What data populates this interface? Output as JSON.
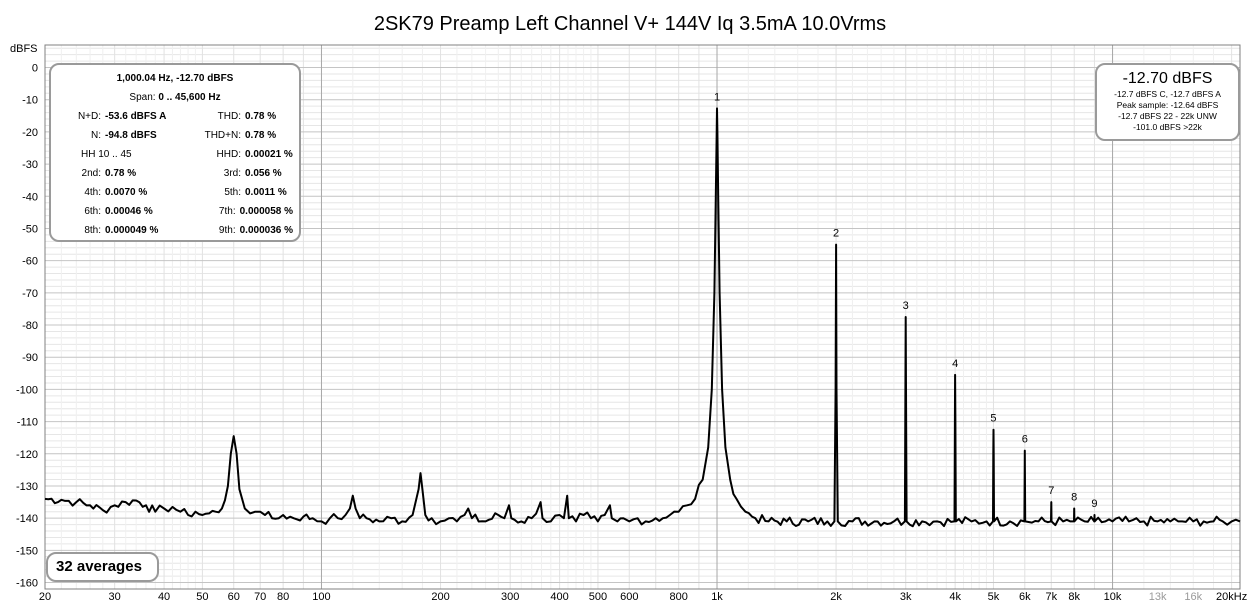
{
  "chart_data": {
    "type": "line",
    "title": "2SK79 Preamp Left Channel V+ 144V Iq 3.5mA 10.0Vrms",
    "ylabel": "dBFS",
    "xlabel": "",
    "x_scale": "log",
    "xlim": [
      20,
      21000
    ],
    "ylim": [
      -162,
      7
    ],
    "yticks": [
      0,
      -10,
      -20,
      -30,
      -40,
      -50,
      -60,
      -70,
      -80,
      -90,
      -100,
      -110,
      -120,
      -130,
      -140,
      -150,
      -160
    ],
    "xticks": [
      {
        "v": 20,
        "label": "20"
      },
      {
        "v": 30,
        "label": "30"
      },
      {
        "v": 40,
        "label": "40"
      },
      {
        "v": 50,
        "label": "50"
      },
      {
        "v": 60,
        "label": "60"
      },
      {
        "v": 70,
        "label": "70"
      },
      {
        "v": 80,
        "label": "80"
      },
      {
        "v": 100,
        "label": "100"
      },
      {
        "v": 200,
        "label": "200"
      },
      {
        "v": 300,
        "label": "300"
      },
      {
        "v": 400,
        "label": "400"
      },
      {
        "v": 500,
        "label": "500"
      },
      {
        "v": 600,
        "label": "600"
      },
      {
        "v": 800,
        "label": "800"
      },
      {
        "v": 1000,
        "label": "1k"
      },
      {
        "v": 2000,
        "label": "2k"
      },
      {
        "v": 3000,
        "label": "3k"
      },
      {
        "v": 4000,
        "label": "4k"
      },
      {
        "v": 5000,
        "label": "5k"
      },
      {
        "v": 6000,
        "label": "6k"
      },
      {
        "v": 7000,
        "label": "7k"
      },
      {
        "v": 8000,
        "label": "8k"
      },
      {
        "v": 10000,
        "label": "10k"
      },
      {
        "v": 13000,
        "label": "13k",
        "dim": true
      },
      {
        "v": 16000,
        "label": "16k",
        "dim": true
      },
      {
        "v": 20000,
        "label": "20kHz"
      }
    ],
    "grid": true,
    "series": [
      {
        "color": "#000000",
        "points": [
          [
            20,
            -134
          ],
          [
            22,
            -134.3
          ],
          [
            24,
            -135
          ],
          [
            26,
            -136
          ],
          [
            28,
            -137.5
          ],
          [
            30,
            -136
          ],
          [
            32,
            -135
          ],
          [
            34,
            -134.5
          ],
          [
            36,
            -136
          ],
          [
            38,
            -138
          ],
          [
            40,
            -137
          ],
          [
            42,
            -136.5
          ],
          [
            44,
            -138
          ],
          [
            46,
            -139
          ],
          [
            48,
            -138
          ],
          [
            50,
            -139
          ],
          [
            52,
            -138.5
          ],
          [
            54,
            -138
          ],
          [
            56,
            -137
          ],
          [
            58,
            -130
          ],
          [
            59,
            -120
          ],
          [
            60,
            -114.5
          ],
          [
            61,
            -120
          ],
          [
            62,
            -131
          ],
          [
            64,
            -137
          ],
          [
            66,
            -138.5
          ],
          [
            68,
            -138
          ],
          [
            70,
            -138
          ],
          [
            72,
            -139
          ],
          [
            75,
            -140
          ],
          [
            78,
            -140
          ],
          [
            80,
            -139
          ],
          [
            85,
            -140
          ],
          [
            90,
            -139.5
          ],
          [
            95,
            -140
          ],
          [
            100,
            -141
          ],
          [
            105,
            -140
          ],
          [
            110,
            -140
          ],
          [
            115,
            -139
          ],
          [
            118,
            -137
          ],
          [
            120,
            -133
          ],
          [
            122,
            -137
          ],
          [
            125,
            -140
          ],
          [
            130,
            -140
          ],
          [
            140,
            -141
          ],
          [
            150,
            -140
          ],
          [
            160,
            -141
          ],
          [
            170,
            -139
          ],
          [
            176,
            -131
          ],
          [
            178,
            -126
          ],
          [
            180,
            -131
          ],
          [
            183,
            -139
          ],
          [
            190,
            -140
          ],
          [
            200,
            -141
          ],
          [
            210,
            -140
          ],
          [
            220,
            -141
          ],
          [
            230,
            -139
          ],
          [
            235,
            -137
          ],
          [
            240,
            -140
          ],
          [
            260,
            -141
          ],
          [
            280,
            -139
          ],
          [
            290,
            -140
          ],
          [
            298,
            -136
          ],
          [
            302,
            -140
          ],
          [
            320,
            -141
          ],
          [
            340,
            -140
          ],
          [
            358,
            -135
          ],
          [
            362,
            -140
          ],
          [
            380,
            -141
          ],
          [
            400,
            -139
          ],
          [
            410,
            -140
          ],
          [
            418,
            -133
          ],
          [
            422,
            -140
          ],
          [
            440,
            -141
          ],
          [
            460,
            -139
          ],
          [
            480,
            -140
          ],
          [
            500,
            -141
          ],
          [
            520,
            -139
          ],
          [
            536,
            -136
          ],
          [
            542,
            -140
          ],
          [
            560,
            -141
          ],
          [
            580,
            -140
          ],
          [
            600,
            -141
          ],
          [
            630,
            -140
          ],
          [
            660,
            -141
          ],
          [
            700,
            -140
          ],
          [
            730,
            -140
          ],
          [
            760,
            -139
          ],
          [
            800,
            -138
          ],
          [
            840,
            -136
          ],
          [
            880,
            -134
          ],
          [
            920,
            -128
          ],
          [
            950,
            -118
          ],
          [
            970,
            -100
          ],
          [
            985,
            -70
          ],
          [
            993,
            -40
          ],
          [
            998,
            -20
          ],
          [
            1000,
            -12.7
          ],
          [
            1002,
            -20
          ],
          [
            1007,
            -40
          ],
          [
            1015,
            -70
          ],
          [
            1030,
            -100
          ],
          [
            1050,
            -118
          ],
          [
            1080,
            -128
          ],
          [
            1120,
            -134
          ],
          [
            1180,
            -138
          ],
          [
            1250,
            -140
          ],
          [
            1350,
            -141
          ],
          [
            1500,
            -141
          ],
          [
            1700,
            -141
          ],
          [
            1900,
            -141
          ],
          [
            1980,
            -141
          ],
          [
            1995,
            -100
          ],
          [
            2000,
            -55
          ],
          [
            2005,
            -100
          ],
          [
            2020,
            -141
          ],
          [
            2200,
            -141
          ],
          [
            2500,
            -141
          ],
          [
            2800,
            -141
          ],
          [
            2985,
            -141
          ],
          [
            2995,
            -100
          ],
          [
            3000,
            -77.5
          ],
          [
            3005,
            -100
          ],
          [
            3015,
            -141
          ],
          [
            3300,
            -141
          ],
          [
            3600,
            -141
          ],
          [
            3985,
            -141
          ],
          [
            3995,
            -110
          ],
          [
            4000,
            -95.5
          ],
          [
            4005,
            -110
          ],
          [
            4015,
            -141
          ],
          [
            4400,
            -141
          ],
          [
            4800,
            -141
          ],
          [
            4985,
            -141
          ],
          [
            4995,
            -120
          ],
          [
            5000,
            -112.5
          ],
          [
            5005,
            -120
          ],
          [
            5015,
            -141
          ],
          [
            5500,
            -141
          ],
          [
            5985,
            -141
          ],
          [
            5995,
            -125
          ],
          [
            6000,
            -119
          ],
          [
            6005,
            -125
          ],
          [
            6015,
            -141
          ],
          [
            6500,
            -141
          ],
          [
            6990,
            -141
          ],
          [
            7000,
            -135
          ],
          [
            7010,
            -141
          ],
          [
            7500,
            -141
          ],
          [
            7990,
            -141
          ],
          [
            8000,
            -137
          ],
          [
            8010,
            -141
          ],
          [
            8500,
            -141
          ],
          [
            8990,
            -141
          ],
          [
            9000,
            -139
          ],
          [
            9010,
            -141
          ],
          [
            10000,
            -141
          ],
          [
            11000,
            -141
          ],
          [
            12000,
            -141
          ],
          [
            13000,
            -141
          ],
          [
            14000,
            -141
          ],
          [
            15000,
            -141
          ],
          [
            16000,
            -141
          ],
          [
            17000,
            -141
          ],
          [
            18000,
            -141
          ],
          [
            19000,
            -141
          ],
          [
            20000,
            -141
          ],
          [
            21000,
            -141
          ]
        ]
      }
    ],
    "harmonic_labels": [
      {
        "n": "1",
        "f": 1000,
        "db": -12.7
      },
      {
        "n": "2",
        "f": 2000,
        "db": -55
      },
      {
        "n": "3",
        "f": 3000,
        "db": -77.5
      },
      {
        "n": "4",
        "f": 4000,
        "db": -95.5
      },
      {
        "n": "5",
        "f": 5000,
        "db": -112.5
      },
      {
        "n": "6",
        "f": 6000,
        "db": -119
      },
      {
        "n": "7",
        "f": 7000,
        "db": -135
      },
      {
        "n": "8",
        "f": 8000,
        "db": -137
      },
      {
        "n": "9",
        "f": 9000,
        "db": -139
      }
    ]
  },
  "stats": {
    "header": "1,000.04 Hz, -12.70 dBFS",
    "span_label": "Span:",
    "span_value": "0 .. 45,600 Hz",
    "nd_label": "N+D:",
    "nd_value": "-53.6 dBFS A",
    "thd_label": "THD:",
    "thd_value": "0.78 %",
    "n_label": "N:",
    "n_value": "-94.8 dBFS",
    "thdn_label": "THD+N:",
    "thdn_value": "0.78 %",
    "hh_label": "HH 10 .. 45",
    "hhd_label": "HHD:",
    "hhd_value": "0.00021 %",
    "h2_label": "2nd:",
    "h2_value": "0.78 %",
    "h3_label": "3rd:",
    "h3_value": "0.056 %",
    "h4_label": "4th:",
    "h4_value": "0.0070 %",
    "h5_label": "5th:",
    "h5_value": "0.0011 %",
    "h6_label": "6th:",
    "h6_value": "0.00046 %",
    "h7_label": "7th:",
    "h7_value": "0.000058 %",
    "h8_label": "8th:",
    "h8_value": "0.000049 %",
    "h9_label": "9th:",
    "h9_value": "0.000036 %"
  },
  "level": {
    "main": "-12.70 dBFS",
    "line1": "-12.7 dBFS C, -12.7 dBFS A",
    "line2": "Peak sample: -12.64 dBFS",
    "line3": "-12.7 dBFS 22 - 22k UNW",
    "line4": "-101.0 dBFS >22k"
  },
  "averages": "32 averages"
}
